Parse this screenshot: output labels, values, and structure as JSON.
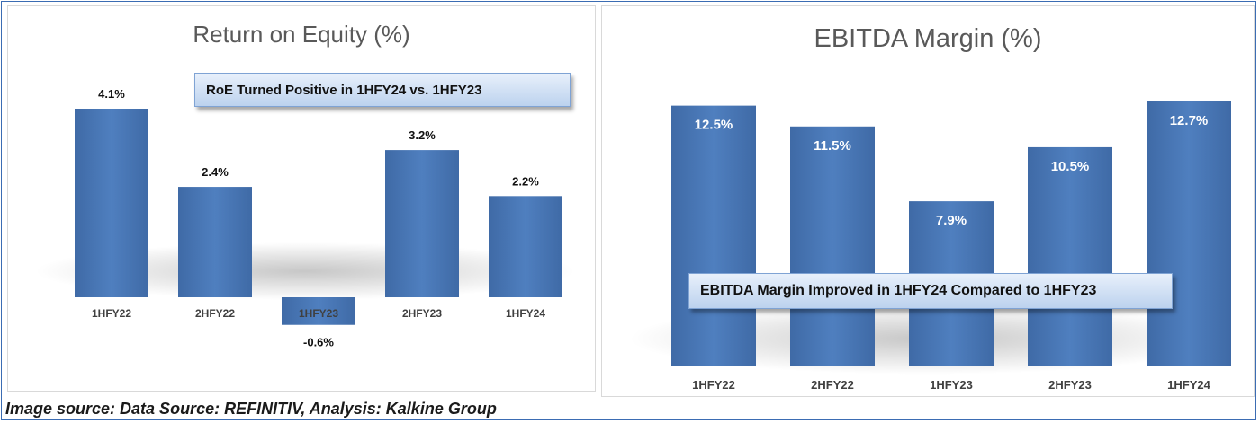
{
  "source_text": "Image source: Data Source: REFINITIV, Analysis: Kalkine Group",
  "colors": {
    "bar": "#4f7fbf",
    "bar_dark": "#3f6aa6",
    "frame": "#3b6cb3"
  },
  "chart_data": [
    {
      "type": "bar",
      "title": "Return on Equity (%)",
      "annotation": "RoE Turned Positive in 1HFY24 vs. 1HFY23",
      "categories": [
        "1HFY22",
        "2HFY22",
        "1HFY23",
        "2HFY23",
        "1HFY24"
      ],
      "values": [
        4.1,
        2.4,
        -0.6,
        3.2,
        2.2
      ],
      "data_labels": [
        "4.1%",
        "2.4%",
        "-0.6%",
        "3.2%",
        "2.2%"
      ],
      "ylim": [
        -0.6,
        4.1
      ],
      "grid": false,
      "label_position": "outside"
    },
    {
      "type": "bar",
      "title": "EBITDA Margin (%)",
      "annotation": "EBITDA Margin Improved in 1HFY24 Compared to 1HFY23",
      "categories": [
        "1HFY22",
        "2HFY22",
        "1HFY23",
        "2HFY23",
        "1HFY24"
      ],
      "values": [
        12.5,
        11.5,
        7.9,
        10.5,
        12.7
      ],
      "data_labels": [
        "12.5%",
        "11.5%",
        "7.9%",
        "10.5%",
        "12.7%"
      ],
      "ylim": [
        0,
        12.7
      ],
      "grid": false,
      "label_position": "inside-top"
    }
  ]
}
